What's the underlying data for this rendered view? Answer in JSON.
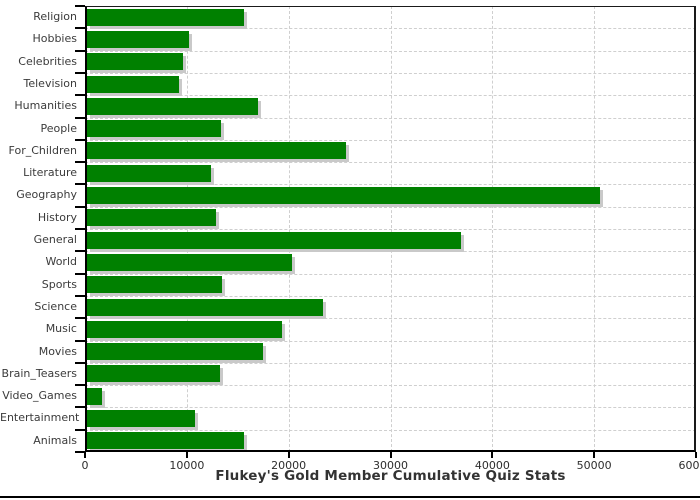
{
  "title": "Flukey's Gold Member Cumulative Quiz Stats",
  "colors": {
    "bar": "#008000",
    "bar_shadow": "#c9c9c9",
    "gridline": "#cfcfcf",
    "axis": "#000000",
    "labels": "#3b3b3b",
    "title": "#333333"
  },
  "chart_data": {
    "type": "bar",
    "orientation": "horizontal",
    "title": "Flukey's Gold Member Cumulative Quiz Stats",
    "categories": [
      "Religion",
      "Hobbies",
      "Celebrities",
      "Television",
      "Humanities",
      "People",
      "For_Children",
      "Literature",
      "Geography",
      "History",
      "General",
      "World",
      "Sports",
      "Science",
      "Music",
      "Movies",
      "Brain_Teasers",
      "Video_Games",
      "Entertainment",
      "Animals"
    ],
    "values": [
      15500,
      10100,
      9500,
      9100,
      16900,
      13200,
      25600,
      12200,
      50600,
      12700,
      36900,
      20200,
      13300,
      23300,
      19200,
      17400,
      13100,
      1500,
      10700,
      15500
    ],
    "xlim": [
      0,
      60000
    ],
    "x_ticks": [
      0,
      10000,
      20000,
      30000,
      40000,
      50000,
      60000
    ],
    "x_tick_labels": [
      "0",
      "10000",
      "20000",
      "30000",
      "40000",
      "50000",
      "60000"
    ],
    "grid": true,
    "legend": false
  }
}
